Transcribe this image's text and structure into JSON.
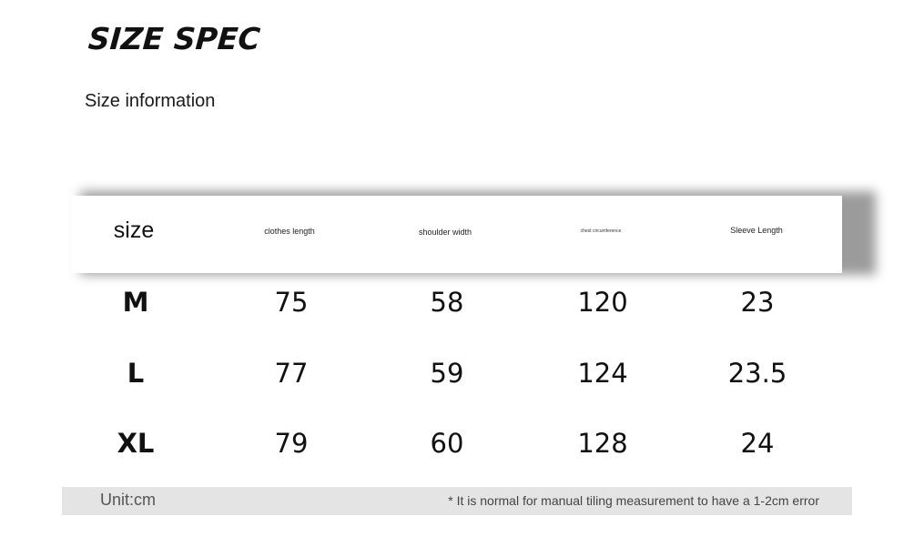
{
  "title": "SIZE SPEC",
  "subtitle": "Size information",
  "table": {
    "headers": [
      "size",
      "clothes length",
      "shoulder width",
      "chest circumference",
      "Sleeve Length"
    ],
    "rows": [
      {
        "size": "M",
        "clothes_length": "75",
        "shoulder_width": "58",
        "chest": "120",
        "sleeve": "23"
      },
      {
        "size": "L",
        "clothes_length": "77",
        "shoulder_width": "59",
        "chest": "124",
        "sleeve": "23.5"
      },
      {
        "size": "XL",
        "clothes_length": "79",
        "shoulder_width": "60",
        "chest": "128",
        "sleeve": "24"
      }
    ]
  },
  "footer": {
    "unit": "Unit:cm",
    "note": "* It is normal for manual tiling measurement to have a 1-2cm error"
  }
}
